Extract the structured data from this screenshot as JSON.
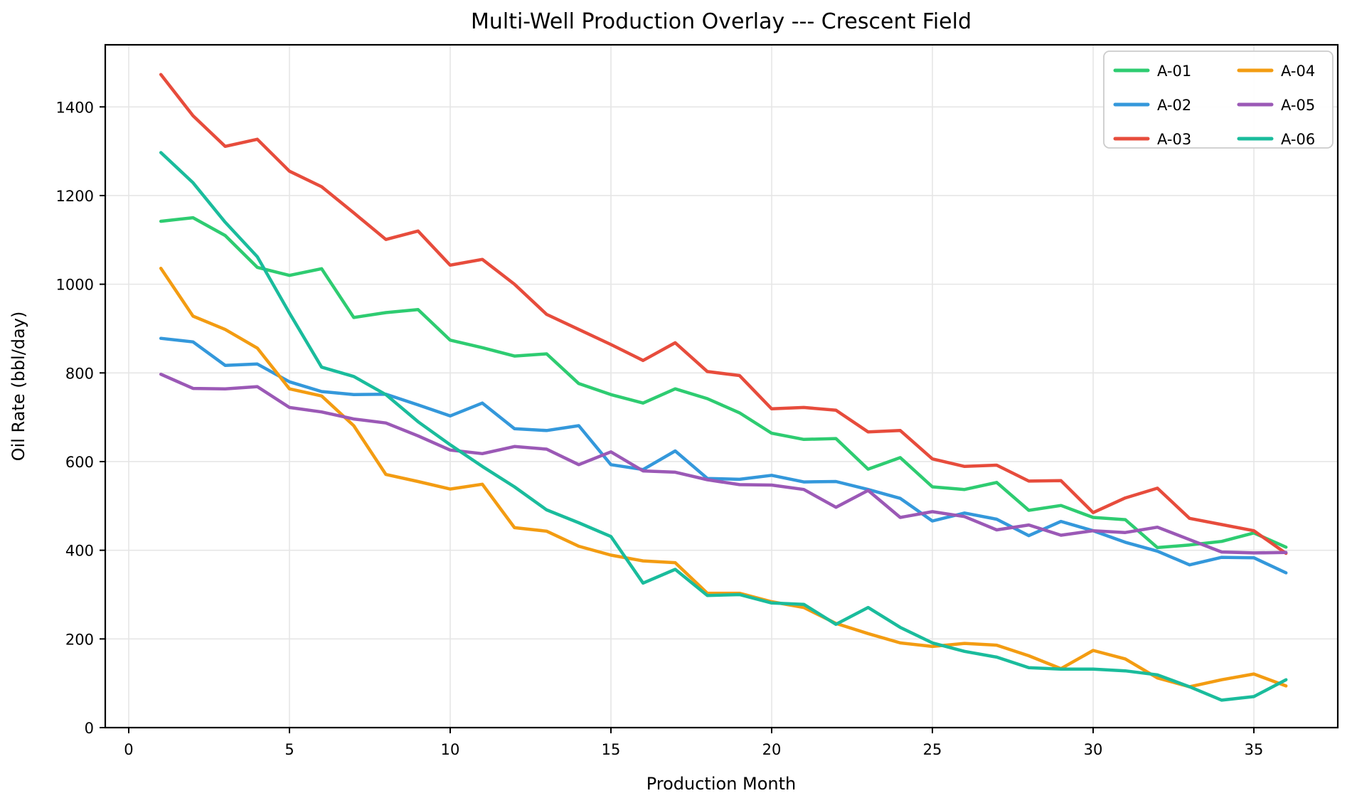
{
  "figure": {
    "background": "#ffffff",
    "grid_color": "#e6e6e6",
    "spine_color": "#000000",
    "tick_color": "#000000"
  },
  "chart_data": {
    "type": "line",
    "title": "Multi-Well Production Overlay --- Crescent Field",
    "xlabel": "Production Month",
    "ylabel": "Oil Rate (bbl/day)",
    "x": [
      1,
      2,
      3,
      4,
      5,
      6,
      7,
      8,
      9,
      10,
      11,
      12,
      13,
      14,
      15,
      16,
      17,
      18,
      19,
      20,
      21,
      22,
      23,
      24,
      25,
      26,
      27,
      28,
      29,
      30,
      31,
      32,
      33,
      34,
      35,
      36
    ],
    "series": [
      {
        "name": "A-01",
        "color": "#2ecc71",
        "values": [
          1142,
          1150,
          1110,
          1038,
          1020,
          1035,
          925,
          936,
          943,
          874,
          857,
          838,
          843,
          776,
          751,
          732,
          764,
          742,
          710,
          664,
          650,
          652,
          583,
          609,
          543,
          537,
          553,
          490,
          501,
          474,
          469,
          406,
          412,
          420,
          439,
          407
        ]
      },
      {
        "name": "A-02",
        "color": "#3498db",
        "values": [
          878,
          870,
          817,
          820,
          780,
          758,
          751,
          752,
          728,
          703,
          732,
          674,
          670,
          681,
          593,
          582,
          624,
          562,
          560,
          569,
          554,
          555,
          537,
          517,
          466,
          484,
          470,
          433,
          465,
          444,
          418,
          398,
          367,
          384,
          383,
          349
        ]
      },
      {
        "name": "A-03",
        "color": "#e74c3c",
        "values": [
          1473,
          1380,
          1311,
          1327,
          1255,
          1220,
          1161,
          1101,
          1120,
          1043,
          1056,
          1000,
          932,
          898,
          864,
          828,
          868,
          803,
          794,
          719,
          722,
          716,
          667,
          670,
          606,
          589,
          592,
          556,
          557,
          485,
          518,
          540,
          472,
          458,
          444,
          393
        ]
      },
      {
        "name": "A-04",
        "color": "#f39c12",
        "values": [
          1036,
          928,
          898,
          856,
          764,
          748,
          681,
          571,
          555,
          538,
          549,
          451,
          443,
          409,
          389,
          376,
          372,
          303,
          303,
          284,
          271,
          235,
          212,
          191,
          183,
          190,
          186,
          162,
          133,
          174,
          155,
          112,
          92,
          108,
          121,
          94
        ]
      },
      {
        "name": "A-05",
        "color": "#9b59b6",
        "values": [
          797,
          765,
          764,
          769,
          722,
          712,
          696,
          687,
          658,
          626,
          618,
          634,
          628,
          593,
          622,
          579,
          576,
          559,
          548,
          547,
          537,
          497,
          535,
          474,
          487,
          476,
          446,
          457,
          434,
          444,
          440,
          452,
          424,
          396,
          394,
          395
        ]
      },
      {
        "name": "A-06",
        "color": "#1abc9c",
        "values": [
          1297,
          1229,
          1140,
          1062,
          935,
          813,
          792,
          751,
          690,
          638,
          589,
          543,
          491,
          462,
          431,
          326,
          357,
          298,
          300,
          281,
          278,
          233,
          271,
          226,
          191,
          172,
          159,
          135,
          132,
          132,
          128,
          119,
          92,
          62,
          70,
          108
        ]
      }
    ],
    "xticks": [
      0,
      5,
      10,
      15,
      20,
      25,
      30,
      35
    ],
    "yticks": [
      0,
      200,
      400,
      600,
      800,
      1000,
      1200,
      1400
    ],
    "xlim": [
      -0.73,
      37.61
    ],
    "ylim": [
      0,
      1540
    ],
    "grid": true,
    "legend": {
      "position": "upper right",
      "columns": 2,
      "entries": [
        "A-01",
        "A-02",
        "A-03",
        "A-04",
        "A-05",
        "A-06"
      ]
    }
  }
}
